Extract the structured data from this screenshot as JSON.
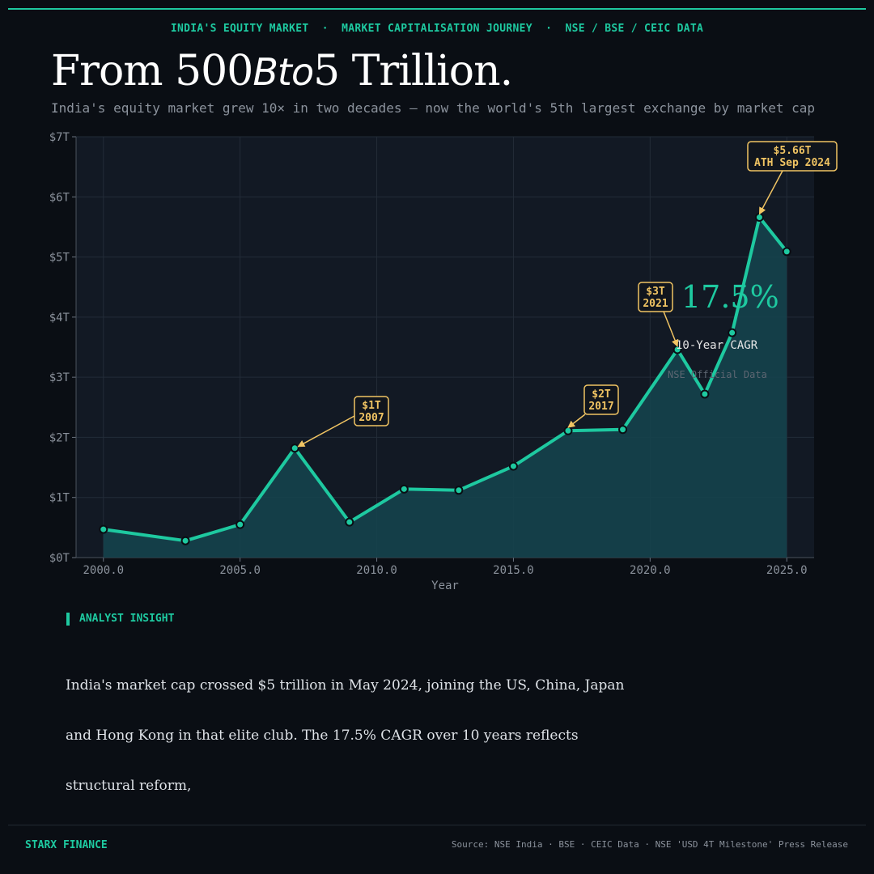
{
  "header": {
    "kicker": "INDIA'S EQUITY MARKET  ·  MARKET CAPITALISATION JOURNEY  ·  NSE / BSE / CEIC DATA",
    "title_a": "From 500",
    "title_b": "Bto",
    "title_c": "5 Trillion.",
    "subtitle": "India's equity market grew 10× in two decades — now the world's 5th largest exchange by market cap"
  },
  "chart_data": {
    "type": "area",
    "xlabel": "Year",
    "ylabel": "",
    "xlim": [
      1999,
      2026
    ],
    "ylim": [
      0,
      7
    ],
    "grid": true,
    "x_ticks": [
      2000,
      2005,
      2010,
      2015,
      2020,
      2025
    ],
    "x_tick_labels": [
      "2000.0",
      "2005.0",
      "2010.0",
      "2015.0",
      "2020.0",
      "2025.0"
    ],
    "y_ticks": [
      0,
      1,
      2,
      3,
      4,
      5,
      6,
      7
    ],
    "y_tick_labels": [
      "$0T",
      "$1T",
      "$2T",
      "$3T",
      "$4T",
      "$5T",
      "$6T",
      "$7T"
    ],
    "x": [
      2000,
      2003,
      2005,
      2007,
      2009,
      2011,
      2013,
      2015,
      2017,
      2019,
      2021,
      2022,
      2023,
      2024,
      2025
    ],
    "y": [
      0.47,
      0.28,
      0.55,
      1.82,
      0.59,
      1.14,
      1.12,
      1.52,
      2.11,
      2.13,
      3.46,
      2.72,
      3.74,
      5.66,
      5.09
    ],
    "line_color": "#1ec9a0",
    "fill_color": "#15434c",
    "annotations": [
      {
        "lines": [
          "$1T",
          "2007"
        ],
        "x": 2007,
        "y": 1.82
      },
      {
        "lines": [
          "$2T",
          "2017"
        ],
        "x": 2017,
        "y": 2.11
      },
      {
        "lines": [
          "$3T",
          "2021"
        ],
        "x": 2021,
        "y": 3.46
      },
      {
        "lines": [
          "$5.66T",
          "ATH Sep 2024"
        ],
        "x": 2024,
        "y": 5.66
      }
    ],
    "annotation_color": "#f0c463",
    "callout": {
      "value": "17.5%",
      "label": "10-Year CAGR",
      "note": "NSE Official Data"
    }
  },
  "insight": {
    "label": "ANALYST INSIGHT",
    "body": "India's market cap crossed $5 trillion in May 2024, joining the US, China, Japan and Hong Kong in that elite club. The 17.5% CAGR over 10 years reflects structural reform,"
  },
  "footer": {
    "brand": "STARX FINANCE",
    "source": "Source: NSE India · BSE · CEIC Data · NSE 'USD 4T Milestone' Press Release"
  }
}
